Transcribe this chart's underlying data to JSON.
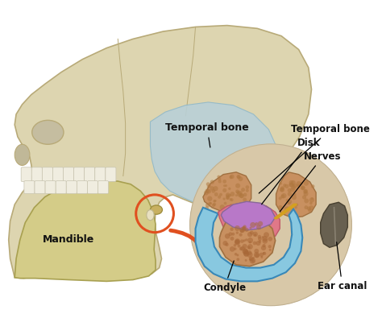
{
  "bg_color": "#ffffff",
  "skull_color": "#ddd5b0",
  "skull_edge": "#b8aa78",
  "temporal_bone_color": "#b8d0d8",
  "mandible_color": "#d4cc88",
  "mandible_edge": "#a8a050",
  "circle_highlight_color": "#e05020",
  "arrow_color": "#e05020",
  "zoom_circle_bg": "#d8c8a8",
  "zoom_circle_edge": "#c0b090",
  "condyle_color": "#d09868",
  "disk_color": "#b888c0",
  "nerve_color": "#d4c9a0",
  "ear_canal_color": "#706050",
  "blue_wrap_color": "#78b8d8",
  "pink_inner_color": "#e07888",
  "labels": {
    "temporal_bone": "Temporal bone",
    "mandible": "Mandible",
    "condyle": "Condyle",
    "disk": "Disk",
    "nerves": "Nerves",
    "ear_canal": "Ear canal",
    "temporal_bone_zoom": "Temporal bone"
  },
  "figsize": [
    4.74,
    3.95
  ],
  "dpi": 100
}
